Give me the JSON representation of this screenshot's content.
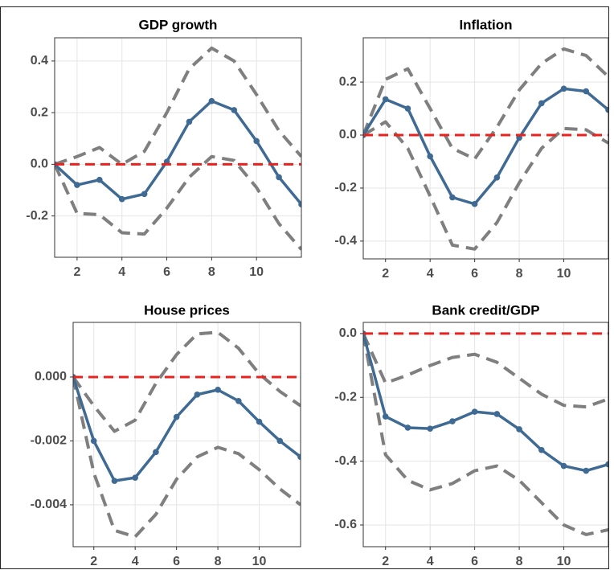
{
  "chart_data": [
    {
      "type": "line",
      "title": "GDP growth",
      "x": [
        1,
        2,
        3,
        4,
        5,
        6,
        7,
        8,
        9,
        10,
        11,
        12
      ],
      "series": [
        {
          "color": "#7f7f7f",
          "dash": true,
          "values": [
            0,
            0.03,
            0.065,
            0.0,
            0.05,
            0.2,
            0.37,
            0.45,
            0.4,
            0.27,
            0.13,
            0.03
          ]
        },
        {
          "color": "#7f7f7f",
          "dash": true,
          "values": [
            0,
            -0.19,
            -0.195,
            -0.265,
            -0.27,
            -0.17,
            -0.05,
            0.03,
            0.015,
            -0.09,
            -0.23,
            -0.33
          ]
        },
        {
          "color": "#3e6a94",
          "markers": true,
          "values": [
            0,
            -0.08,
            -0.06,
            -0.135,
            -0.115,
            0.01,
            0.165,
            0.245,
            0.21,
            0.09,
            -0.05,
            -0.155
          ]
        }
      ],
      "hline": 0,
      "hline_color": "#e8231f",
      "xlim": [
        1,
        12
      ],
      "xticks": [
        2,
        4,
        6,
        8,
        10
      ],
      "ylim": [
        -0.36,
        0.49
      ],
      "yticks": [
        -0.2,
        {
          "value": 0,
          "label": "0.0"
        },
        0.2,
        0.4
      ],
      "grid": true
    },
    {
      "type": "line",
      "title": "Inflation",
      "x": [
        1,
        2,
        3,
        4,
        5,
        6,
        7,
        8,
        9,
        10,
        11,
        12
      ],
      "series": [
        {
          "color": "#7f7f7f",
          "dash": true,
          "values": [
            0,
            0.21,
            0.25,
            0.1,
            -0.05,
            -0.09,
            0.03,
            0.17,
            0.27,
            0.325,
            0.3,
            0.22
          ]
        },
        {
          "color": "#7f7f7f",
          "dash": true,
          "values": [
            0,
            0.05,
            -0.05,
            -0.23,
            -0.415,
            -0.43,
            -0.33,
            -0.18,
            -0.05,
            0.025,
            0.02,
            -0.03
          ]
        },
        {
          "color": "#3e6a94",
          "markers": true,
          "values": [
            0,
            0.135,
            0.1,
            -0.08,
            -0.235,
            -0.26,
            -0.16,
            -0.01,
            0.12,
            0.175,
            0.165,
            0.095
          ]
        }
      ],
      "hline": 0,
      "hline_color": "#e8231f",
      "xlim": [
        1,
        12
      ],
      "xticks": [
        2,
        4,
        6,
        8,
        10
      ],
      "ylim": [
        -0.467,
        0.367
      ],
      "yticks": [
        -0.4,
        -0.2,
        {
          "value": 0,
          "label": "0.0"
        },
        0.2
      ],
      "grid": true
    },
    {
      "type": "line",
      "title": "House prices",
      "x": [
        1,
        2,
        3,
        4,
        5,
        6,
        7,
        8,
        9,
        10,
        11,
        12
      ],
      "series": [
        {
          "color": "#7f7f7f",
          "dash": true,
          "values": [
            0,
            -0.0009,
            -0.0017,
            -0.00135,
            -0.0002,
            0.0007,
            0.00135,
            0.0014,
            0.0009,
            0.0001,
            -0.00045,
            -0.0009
          ]
        },
        {
          "color": "#7f7f7f",
          "dash": true,
          "values": [
            0,
            -0.003,
            -0.0048,
            -0.005,
            -0.0043,
            -0.0032,
            -0.0025,
            -0.0022,
            -0.0024,
            -0.0029,
            -0.0035,
            -0.004
          ]
        },
        {
          "color": "#3e6a94",
          "markers": true,
          "values": [
            0,
            -0.002,
            -0.00325,
            -0.00315,
            -0.00235,
            -0.00125,
            -0.00055,
            -0.0004,
            -0.00075,
            -0.0014,
            -0.002,
            -0.0025
          ]
        }
      ],
      "hline": 0,
      "hline_color": "#e8231f",
      "xlim": [
        1,
        12
      ],
      "xticks": [
        2,
        4,
        6,
        8,
        10
      ],
      "ylim": [
        -0.00531,
        0.00171
      ],
      "yticks": [
        -0.004,
        -0.002,
        {
          "value": 0,
          "label": "0.000"
        }
      ],
      "grid": true
    },
    {
      "type": "line",
      "title": "Bank credit/GDP",
      "x": [
        1,
        2,
        3,
        4,
        5,
        6,
        7,
        8,
        9,
        10,
        11,
        12
      ],
      "series": [
        {
          "color": "#7f7f7f",
          "dash": true,
          "values": [
            0,
            -0.155,
            -0.13,
            -0.1,
            -0.075,
            -0.065,
            -0.09,
            -0.14,
            -0.19,
            -0.225,
            -0.23,
            -0.205
          ]
        },
        {
          "color": "#7f7f7f",
          "dash": true,
          "values": [
            0,
            -0.38,
            -0.46,
            -0.49,
            -0.47,
            -0.43,
            -0.415,
            -0.46,
            -0.53,
            -0.6,
            -0.63,
            -0.615
          ]
        },
        {
          "color": "#3e6a94",
          "markers": true,
          "values": [
            0,
            -0.26,
            -0.295,
            -0.298,
            -0.275,
            -0.245,
            -0.252,
            -0.3,
            -0.365,
            -0.415,
            -0.43,
            -0.41
          ]
        }
      ],
      "hline": 0,
      "hline_color": "#e8231f",
      "xlim": [
        1,
        12
      ],
      "xticks": [
        2,
        4,
        6,
        8,
        10
      ],
      "ylim": [
        -0.668,
        0.035
      ],
      "yticks": [
        -0.6,
        -0.4,
        -0.2,
        {
          "value": 0,
          "label": "0.0"
        }
      ],
      "grid": true
    }
  ]
}
